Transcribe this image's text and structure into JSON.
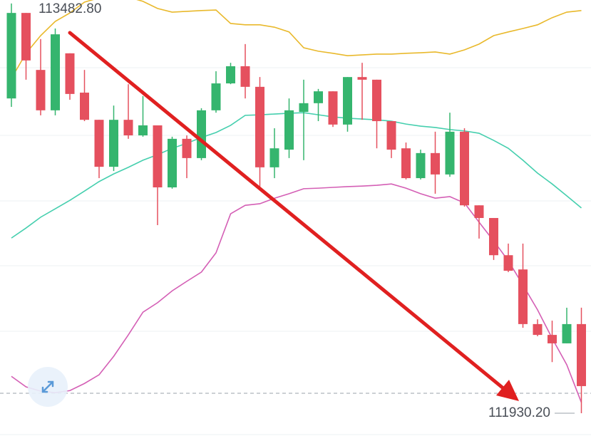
{
  "chart_data": {
    "type": "candlestick",
    "ylim": [
      111825,
      113496
    ],
    "up_color": "#35b56e",
    "down_color": "#e5505e",
    "open": [
      113123,
      113447,
      113231,
      113078,
      113294,
      113145,
      113042,
      112864,
      113042,
      112983,
      113021,
      112786,
      112970,
      112897,
      113078,
      113180,
      113245,
      113167,
      112862,
      112929,
      113072,
      113105,
      113150,
      113024,
      113204,
      113194,
      113037,
      112934,
      112821,
      112916,
      112835,
      112997,
      112718,
      112670,
      112529,
      112475,
      112268,
      112227,
      112195,
      112268
    ],
    "high": [
      113482.8,
      113447,
      113348,
      113388,
      113294,
      113231,
      113042,
      113096,
      113177,
      113132,
      113021,
      112978,
      112983,
      113086,
      113226,
      113258,
      113329,
      113204,
      113010,
      113123,
      113194,
      113159,
      113150,
      113204,
      113258,
      113194,
      113037,
      112956,
      112929,
      112997,
      113069,
      113010,
      112718,
      112670,
      112573,
      112573,
      112286,
      112281,
      112330,
      112330
    ],
    "low": [
      113091,
      113194,
      113059,
      113059,
      113118,
      113037,
      112821,
      112848,
      112970,
      112978,
      112643,
      112781,
      112821,
      112889,
      113069,
      113177,
      113123,
      112789,
      112821,
      112897,
      112889,
      113037,
      113015,
      112997,
      113042,
      112934,
      112897,
      112816,
      112816,
      112762,
      112826,
      112713,
      112592,
      112511,
      112465,
      112254,
      112222,
      112124,
      112195,
      111930.2
    ],
    "close": [
      113447,
      113267,
      113078,
      113366,
      113140,
      113042,
      112864,
      113042,
      112983,
      113021,
      112786,
      112970,
      112897,
      113078,
      113180,
      113245,
      113167,
      112862,
      112934,
      113078,
      113105,
      113150,
      113024,
      113204,
      113194,
      113037,
      112929,
      112821,
      112916,
      112835,
      112997,
      112718,
      112670,
      112529,
      112470,
      112268,
      112227,
      112195,
      112268,
      112033
    ],
    "bands": [
      {
        "color": "#e9b92c",
        "values": [
          113199,
          113294,
          113361,
          113415,
          113447,
          113488,
          113504,
          113512,
          113507,
          113491,
          113464,
          113450,
          113453,
          113456,
          113458,
          113407,
          113402,
          113402,
          113393,
          113375,
          113315,
          113302,
          113294,
          113285,
          113288,
          113291,
          113291,
          113294,
          113296,
          113299,
          113291,
          113307,
          113329,
          113361,
          113375,
          113388,
          113402,
          113429,
          113450,
          113456
        ]
      },
      {
        "color": "#45cfae",
        "values": [
          112594,
          112632,
          112673,
          112705,
          112737,
          112772,
          112808,
          112837,
          112862,
          112889,
          112910,
          112934,
          112953,
          112975,
          112994,
          113021,
          113059,
          113061,
          113064,
          113067,
          113069,
          113061,
          113053,
          113048,
          113045,
          113042,
          113037,
          113026,
          113018,
          113013,
          113005,
          113000,
          112991,
          112964,
          112934,
          112889,
          112840,
          112799,
          112754,
          112708
        ]
      },
      {
        "color": "#d45fb5",
        "values": [
          112070,
          112030,
          112014,
          112008,
          112016,
          112043,
          112076,
          112146,
          112227,
          112313,
          112349,
          112394,
          112430,
          112465,
          112538,
          112686,
          112718,
          112724,
          112745,
          112762,
          112781,
          112783,
          112786,
          112789,
          112791,
          112794,
          112799,
          112783,
          112762,
          112745,
          112751,
          112727,
          112654,
          112583,
          112508,
          112416,
          112322,
          112214,
          112114,
          111971
        ]
      }
    ],
    "annotations": [
      {
        "value": 113482.8,
        "label": "113482.80"
      },
      {
        "value": 111930.2,
        "label": "111930.20"
      }
    ]
  }
}
